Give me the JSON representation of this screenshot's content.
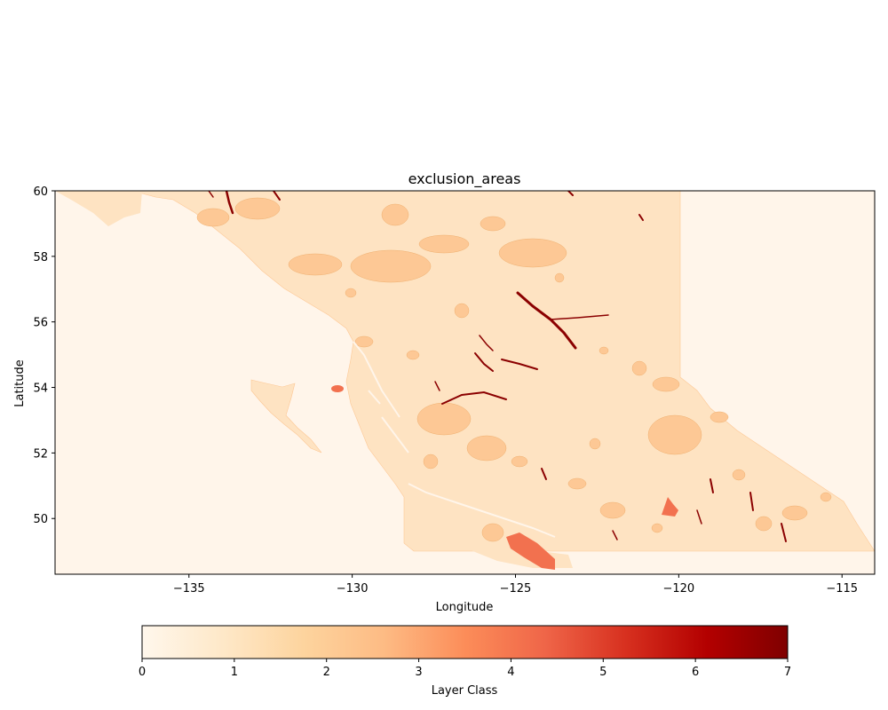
{
  "title": "exclusion_areas",
  "xlabel": "Longitude",
  "ylabel": "Latitude",
  "x_ticks": [
    {
      "value": -135,
      "label": "−135"
    },
    {
      "value": -130,
      "label": "−130"
    },
    {
      "value": -125,
      "label": "−125"
    },
    {
      "value": -120,
      "label": "−120"
    },
    {
      "value": -115,
      "label": "−115"
    }
  ],
  "y_ticks": [
    {
      "value": 50,
      "label": "50"
    },
    {
      "value": 52,
      "label": "52"
    },
    {
      "value": 54,
      "label": "54"
    },
    {
      "value": 56,
      "label": "56"
    },
    {
      "value": 58,
      "label": "58"
    },
    {
      "value": 60,
      "label": "60"
    }
  ],
  "colorbar": {
    "label": "Layer Class",
    "ticks": [
      {
        "value": 0,
        "label": "0"
      },
      {
        "value": 1,
        "label": "1"
      },
      {
        "value": 2,
        "label": "2"
      },
      {
        "value": 3,
        "label": "3"
      },
      {
        "value": 4,
        "label": "4"
      },
      {
        "value": 5,
        "label": "5"
      },
      {
        "value": 6,
        "label": "6"
      },
      {
        "value": 7,
        "label": "7"
      }
    ],
    "range": [
      0,
      7
    ],
    "colormap": "OrRd",
    "stops": [
      "#fff7ec",
      "#fee8c8",
      "#fdd49e",
      "#fdbb84",
      "#fc8d59",
      "#ef6548",
      "#d7301f",
      "#b30000",
      "#7f0000"
    ]
  },
  "map": {
    "xlim": [
      -139.1,
      -114.0
    ],
    "ylim": [
      48.3,
      60.0
    ],
    "class_colors": {
      "0": "#fff5ea",
      "1": "#fee3c2",
      "2": "#fdc895",
      "4": "#f2714f",
      "7": "#8b0000"
    }
  }
}
